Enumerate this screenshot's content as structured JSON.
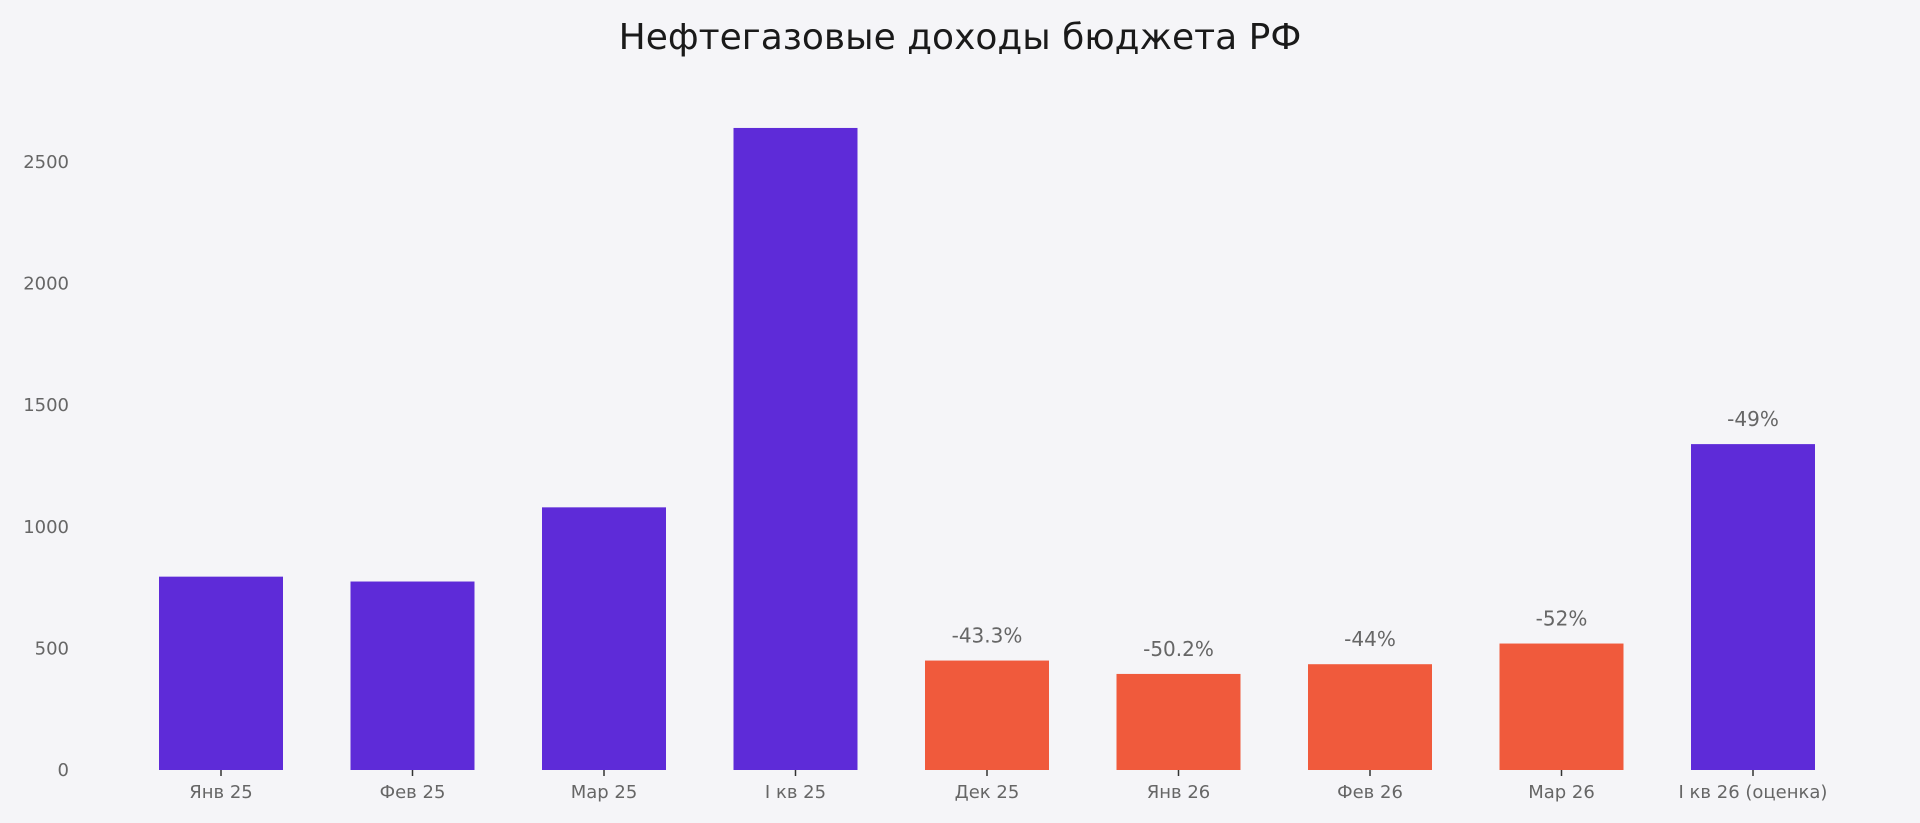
{
  "chart_data": {
    "type": "bar",
    "title": "Нефтегазовые доходы бюджета РФ",
    "xlabel": "",
    "ylabel": "",
    "categories": [
      "Янв 25",
      "Фев 25",
      "Мар 25",
      "I кв 25",
      "Дек 25",
      "Янв 26",
      "Фев 26",
      "Мар 26",
      "I кв 26 (оценка)"
    ],
    "values": [
      795,
      775,
      1080,
      2640,
      450,
      395,
      435,
      520,
      1340
    ],
    "bar_colors": [
      "#5e2bd8",
      "#5e2bd8",
      "#5e2bd8",
      "#5e2bd8",
      "#f05a3c",
      "#f05a3c",
      "#f05a3c",
      "#f05a3c",
      "#5e2bd8"
    ],
    "data_labels": [
      "",
      "",
      "",
      "",
      "-43.3%",
      "-50.2%",
      "-44%",
      "-52%",
      "-49%"
    ],
    "yticks": [
      0,
      500,
      1000,
      1500,
      2000,
      2500
    ],
    "ylim": [
      0,
      2800
    ],
    "grid": false,
    "legend": false
  }
}
